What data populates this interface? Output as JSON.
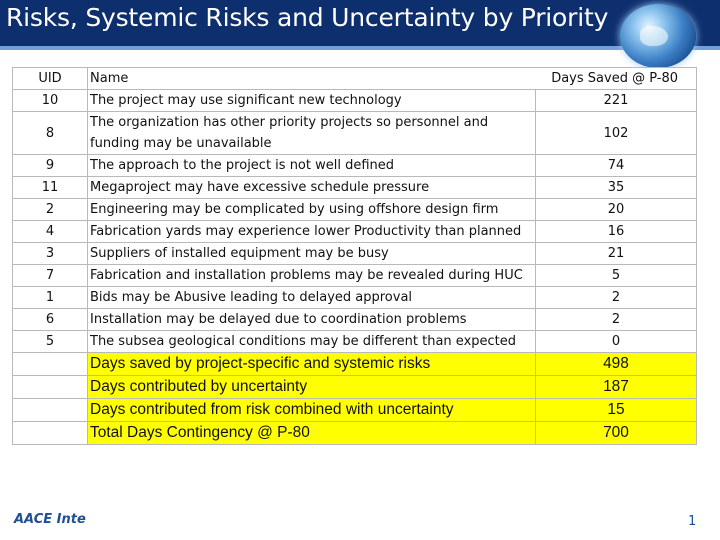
{
  "header": {
    "title": "Risks, Systemic Risks and Uncertainty by Priority"
  },
  "icons": {
    "globe": "globe-icon"
  },
  "colors": {
    "header_bg": "#0d2f6e",
    "summary_highlight": "#ffff00"
  },
  "table": {
    "columns": {
      "uid": "UID",
      "name": "Name",
      "days": "Days Saved @ P-80"
    },
    "rows": [
      {
        "uid": "10",
        "name": "The project may use significant new technology",
        "days": "221"
      },
      {
        "uid": "8",
        "name": "The organization has other priority projects so personnel and funding may be unavailable",
        "days": "102"
      },
      {
        "uid": "9",
        "name": "The approach to the project is not well defined",
        "days": "74"
      },
      {
        "uid": "11",
        "name": "Megaproject may have excessive schedule pressure",
        "days": "35"
      },
      {
        "uid": "2",
        "name": "Engineering may be complicated by using offshore design firm",
        "days": "20"
      },
      {
        "uid": "4",
        "name": "Fabrication yards may experience lower Productivity than planned",
        "days": "16"
      },
      {
        "uid": "3",
        "name": "Suppliers of installed equipment may be busy",
        "days": "21"
      },
      {
        "uid": "7",
        "name": "Fabrication and installation problems may be revealed during HUC",
        "days": "5"
      },
      {
        "uid": "1",
        "name": "Bids may be Abusive leading to delayed approval",
        "days": "2"
      },
      {
        "uid": "6",
        "name": "Installation may be delayed due to coordination problems",
        "days": "2"
      },
      {
        "uid": "5",
        "name": "The subsea geological conditions may be different than expected",
        "days": "0"
      }
    ],
    "summary": [
      {
        "label": "Days saved by project-specific and systemic risks",
        "value": "498"
      },
      {
        "label": "Days contributed by uncertainty",
        "value": "187"
      },
      {
        "label": "Days contributed from risk combined with uncertainty",
        "value": "15"
      },
      {
        "label": "Total Days Contingency @ P-80",
        "value": "700"
      }
    ]
  },
  "footer": {
    "logo_text": "AACE Inte",
    "page_fragment": "1"
  }
}
